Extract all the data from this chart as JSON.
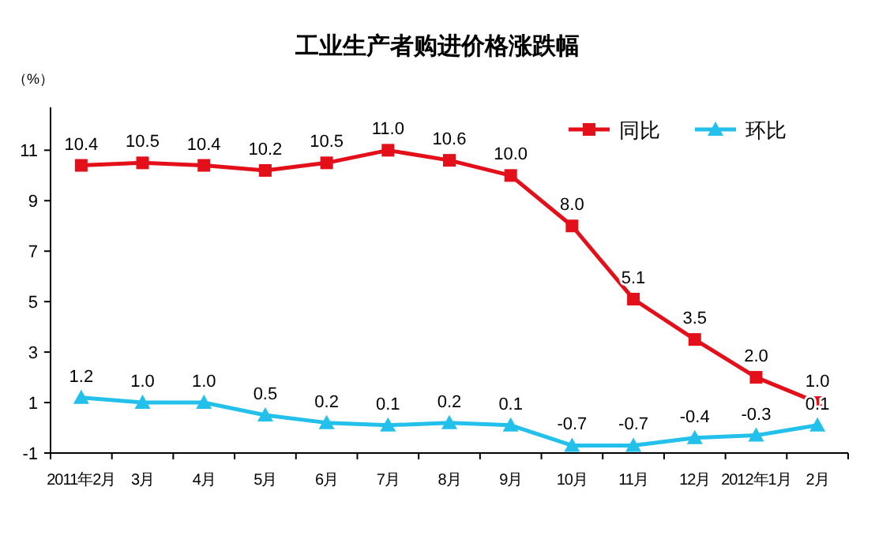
{
  "chart_data": {
    "type": "line",
    "title": "工业生产者购进价格涨跌幅",
    "ylabel": "（%）",
    "categories": [
      "2011年2月",
      "3月",
      "4月",
      "5月",
      "6月",
      "7月",
      "8月",
      "9月",
      "10月",
      "11月",
      "12月",
      "2012年1月",
      "2月"
    ],
    "series": [
      {
        "name": "同比",
        "color": "#e3101a",
        "marker": "square",
        "values": [
          10.4,
          10.5,
          10.4,
          10.2,
          10.5,
          11.0,
          10.6,
          10.0,
          8.0,
          5.1,
          3.5,
          2.0,
          1.0
        ],
        "value_labels": [
          "10.4",
          "10.5",
          "10.4",
          "10.2",
          "10.5",
          "11.0",
          "10.6",
          "10.0",
          "8.0",
          "5.1",
          "3.5",
          "2.0",
          "1.0"
        ]
      },
      {
        "name": "环比",
        "color": "#22c0ea",
        "marker": "triangle",
        "values": [
          1.2,
          1.0,
          1.0,
          0.5,
          0.2,
          0.1,
          0.2,
          0.1,
          -0.7,
          -0.7,
          -0.4,
          -0.3,
          0.1
        ],
        "value_labels": [
          "1.2",
          "1.0",
          "1.0",
          "0.5",
          "0.2",
          "0.1",
          "0.2",
          "0.1",
          "-0.7",
          "-0.7",
          "-0.4",
          "-0.3",
          "0.1"
        ]
      }
    ],
    "ylim": [
      -1,
      12.7
    ],
    "yticks": [
      -1,
      1,
      3,
      5,
      7,
      9,
      11
    ],
    "legend": "top right",
    "grid": false
  }
}
